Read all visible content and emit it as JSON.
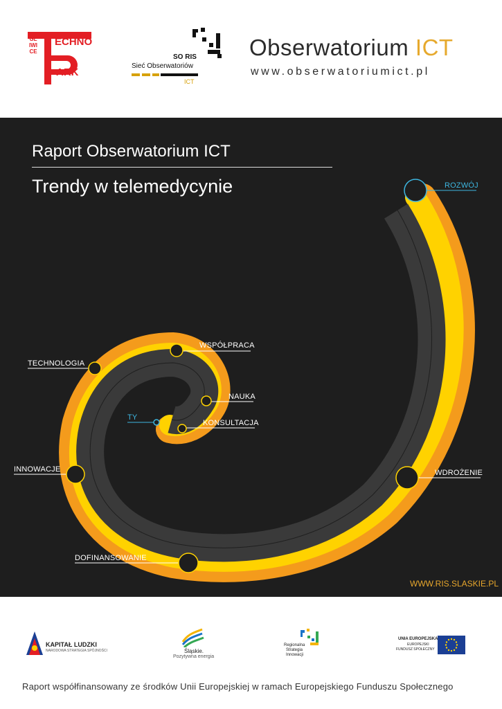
{
  "header": {
    "technopark": {
      "line1": "ECHNO",
      "line2": "ARK",
      "city": "GLIWICE"
    },
    "soris": {
      "title": "SO RIS",
      "subtitle": "Sieć Obserwatoriów",
      "ict": "ICT"
    },
    "observatory": {
      "name": "Obserwatorium",
      "ict": "ICT",
      "url": "www.obserwatoriumict.pl"
    }
  },
  "report": {
    "title": "Raport Obserwatorium ICT",
    "subtitle": "Trendy w telemedycynie"
  },
  "spiral_labels": {
    "rozwoj": "ROZWÓJ",
    "wspolpraca": "WSPÓŁPRACA",
    "technologia": "TECHNOLOGIA",
    "nauka": "NAUKA",
    "ty": "TY",
    "konsultacja": "KONSULTACJA",
    "innowacje": "INNOWACJE",
    "wdrozenie": "WDROŻENIE",
    "dofinansowanie": "DOFINANSOWANIE"
  },
  "ris_url": "WWW.RIS.SLASKIE.PL",
  "footer": {
    "kapital": {
      "title": "KAPITAŁ LUDZKI",
      "sub": "NARODOWA STRATEGIA SPÓJNOŚCI"
    },
    "slaskie": {
      "title": "Śląskie.",
      "sub": "Pozytywna energia"
    },
    "rsi": {
      "line1": "Regionalna",
      "line2": "Strategia",
      "line3": "Innowacji"
    },
    "eu": {
      "line1": "UNIA EUROPEJSKA",
      "line2": "EUROPEJSKI",
      "line3": "FUNDUSZ SPOŁECZNY"
    },
    "caption": "Raport współfinansowany ze środków Unii Europejskiej w ramach Europejskiego Funduszu Społecznego"
  },
  "colors": {
    "background_dark": "#1e1e1e",
    "band_orange": "#f49b1c",
    "band_yellow": "#ffd200",
    "track_grey": "#3a3a3a",
    "accent_blue": "#3db6e0",
    "brand_red": "#e31e24"
  }
}
